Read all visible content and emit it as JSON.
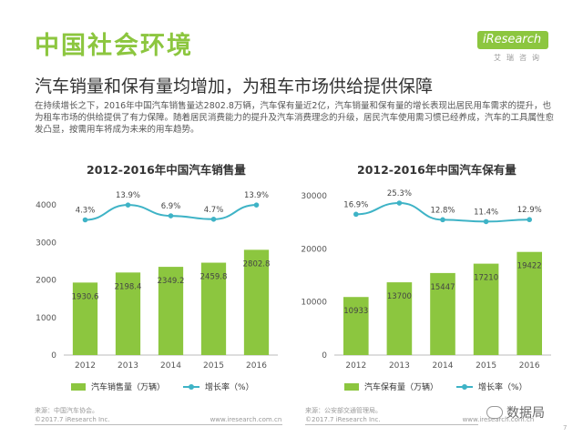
{
  "header": {
    "title": "中国社会环境",
    "subtitle": "汽车销量和保有量均增加，为租车市场供给提供保障",
    "paragraph": "在持续增长之下，2016年中国汽车销售量达2802.8万辆，汽车保有量近2亿，汽车销量和保有量的增长表现出居民用车需求的提升，也为租车市场的供给提供了有力保障。随着居民消费能力的提升及汽车消费理念的升级，居民汽车使用需习惯已经养成，汽车的工具属性愈发凸显，按需用车将成为未来的用车趋势。"
  },
  "logo": {
    "text": "iResearch",
    "sub": "艾瑞咨询"
  },
  "charts": {
    "left": {
      "legend_bar": "汽车销售量（万辆）",
      "legend_line": "增长率（%）"
    },
    "right": {
      "legend_bar": "汽车保有量（万辆）",
      "legend_line": "增长率（%）"
    }
  },
  "chart_data": [
    {
      "type": "bar",
      "title": "2012-2016年中国汽车销售量",
      "categories": [
        "2012",
        "2013",
        "2014",
        "2015",
        "2016"
      ],
      "series": [
        {
          "name": "汽车销售量（万辆）",
          "values": [
            1930.6,
            2198.4,
            2349.2,
            2459.8,
            2802.8
          ]
        },
        {
          "name": "增长率（%）",
          "type": "line",
          "values": [
            4.3,
            13.9,
            6.9,
            4.7,
            13.9
          ],
          "labels": [
            "4.3%",
            "13.9%",
            "6.9%",
            "4.7%",
            "13.9%"
          ]
        }
      ],
      "bar_labels": [
        "1930.6",
        "2198.4",
        "2349.2",
        "2459.8",
        "2802.8"
      ],
      "yticks": [
        "0",
        "1000",
        "2000",
        "3000",
        "4000"
      ],
      "ylim": [
        0,
        4000
      ]
    },
    {
      "type": "bar",
      "title": "2012-2016年中国汽车保有量",
      "categories": [
        "2012",
        "2013",
        "2014",
        "2015",
        "2016"
      ],
      "series": [
        {
          "name": "汽车保有量（万辆）",
          "values": [
            10933,
            13700,
            15447,
            17210,
            19422
          ]
        },
        {
          "name": "增长率（%）",
          "type": "line",
          "values": [
            16.9,
            25.3,
            12.8,
            11.4,
            12.9
          ],
          "labels": [
            "16.9%",
            "25.3%",
            "12.8%",
            "11.4%",
            "12.9%"
          ]
        }
      ],
      "bar_labels": [
        "10933",
        "13700",
        "15447",
        "17210",
        "19422"
      ],
      "yticks": [
        "0",
        "10000",
        "20000",
        "30000"
      ],
      "ylim": [
        0,
        30000
      ]
    }
  ],
  "colors": {
    "accent": "#8cc63f",
    "line": "#3eb3c6"
  },
  "source": {
    "left_1": "来源：中国汽车协会。",
    "left_2": "©2017.7 iResearch Inc.",
    "left_3": "www.iresearch.com.cn",
    "right_1": "来源：公安部交通管理局。",
    "right_2": "©2017.7 iResearch Inc.",
    "right_3": "www.iresearch.com.cn"
  },
  "watermark": {
    "text": "数据局"
  },
  "page": {
    "number": "7"
  }
}
